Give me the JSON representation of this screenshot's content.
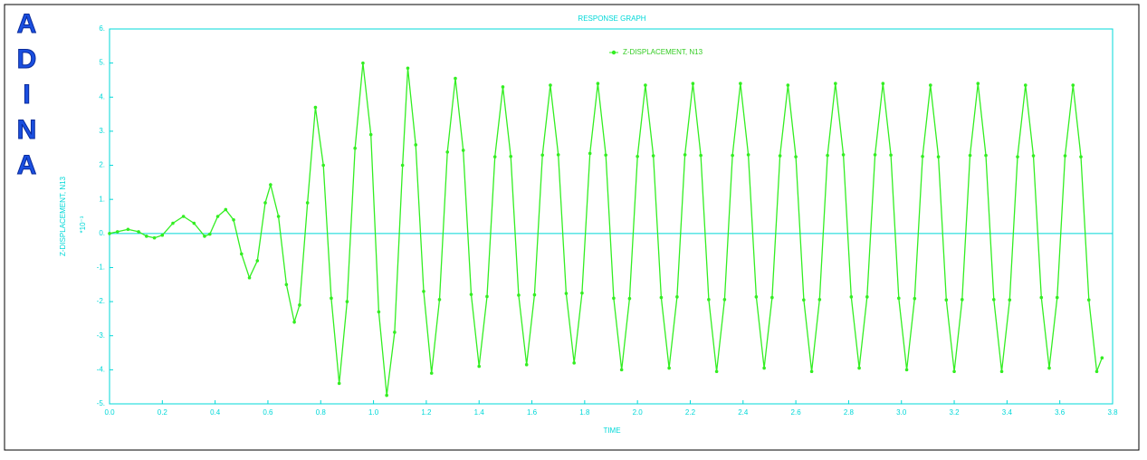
{
  "logo": "ADINA",
  "chart_data": {
    "type": "line",
    "title": "RESPONSE GRAPH",
    "xlabel": "TIME",
    "ylabel": "Z-DISPLACEMENT, N13",
    "y_multiplier": "*10⁻³",
    "x": [
      0.0,
      0.03,
      0.07,
      0.11,
      0.14,
      0.17,
      0.2,
      0.24,
      0.28,
      0.32,
      0.36,
      0.38,
      0.41,
      0.44,
      0.47,
      0.5,
      0.53,
      0.56,
      0.59,
      0.61,
      0.64,
      0.67,
      0.7,
      0.72,
      0.75,
      0.78,
      0.81,
      0.84,
      0.87,
      0.9,
      0.93,
      0.96,
      0.99,
      1.02,
      1.05,
      1.08,
      1.11,
      1.13,
      1.16,
      1.19,
      1.22,
      1.25,
      1.28,
      1.31,
      1.34,
      1.37,
      1.4,
      1.43,
      1.46,
      1.49,
      1.52,
      1.55,
      1.58,
      1.61,
      1.64,
      1.67,
      1.7,
      1.73,
      1.76,
      1.79,
      1.82,
      1.85,
      1.88,
      1.91,
      1.94,
      1.97,
      2.0,
      2.03,
      2.06,
      2.09,
      2.12,
      2.15,
      2.18,
      2.21,
      2.24,
      2.27,
      2.3,
      2.33,
      2.36,
      2.39,
      2.42,
      2.45,
      2.48,
      2.51,
      2.54,
      2.57,
      2.6,
      2.63,
      2.66,
      2.69,
      2.72,
      2.75,
      2.78,
      2.81,
      2.84,
      2.87,
      2.9,
      2.93,
      2.96,
      2.99,
      3.02,
      3.05,
      3.08,
      3.11,
      3.14,
      3.17,
      3.2,
      3.23,
      3.26,
      3.29,
      3.32,
      3.35,
      3.38,
      3.41,
      3.44,
      3.47,
      3.5,
      3.53,
      3.56,
      3.59,
      3.62,
      3.65,
      3.68,
      3.71,
      3.74,
      3.76
    ],
    "series": [
      {
        "name": "Z-DISPLACEMENT, N13",
        "color": "#33ee22",
        "values": [
          0,
          0.05,
          0.12,
          0.05,
          -0.08,
          -0.13,
          -0.05,
          0.3,
          0.5,
          0.3,
          -0.08,
          -0.02,
          0.5,
          0.7,
          0.4,
          -0.6,
          -1.3,
          -0.8,
          0.9,
          1.43,
          0.5,
          -1.5,
          -2.6,
          -2.1,
          0.9,
          3.7,
          2.0,
          -1.9,
          -4.4,
          -2.0,
          2.5,
          5.0,
          2.9,
          -2.3,
          -4.75,
          -2.9,
          2.0,
          4.85,
          2.6,
          -1.7,
          -4.1,
          -1.94,
          2.39,
          4.55,
          2.44,
          -1.79,
          -3.9,
          -1.85,
          2.25,
          4.3,
          2.26,
          -1.81,
          -3.85,
          -1.8,
          2.3,
          4.35,
          2.31,
          -1.76,
          -3.8,
          -1.75,
          2.35,
          4.4,
          2.3,
          -1.9,
          -4.0,
          -1.91,
          2.26,
          4.35,
          2.28,
          -1.88,
          -3.95,
          -1.86,
          2.31,
          4.4,
          2.29,
          -1.94,
          -4.05,
          -1.94,
          2.29,
          4.4,
          2.31,
          -1.86,
          -3.95,
          -1.88,
          2.28,
          4.35,
          2.25,
          -1.95,
          -4.05,
          -1.94,
          2.29,
          4.4,
          2.31,
          -1.86,
          -3.95,
          -1.86,
          2.31,
          4.4,
          2.3,
          -1.9,
          -4.0,
          -1.91,
          2.26,
          4.35,
          2.25,
          -1.95,
          -4.05,
          -1.94,
          2.29,
          4.4,
          2.29,
          -1.94,
          -4.05,
          -1.95,
          2.25,
          4.35,
          2.28,
          -1.88,
          -3.95,
          -1.88,
          2.28,
          4.35,
          2.25,
          -1.95,
          -4.05,
          -3.65
        ]
      }
    ],
    "xlim": [
      0,
      3.8
    ],
    "xticks": [
      {
        "value": 0,
        "label": "0.0"
      },
      0.2,
      0.4,
      0.6,
      0.8,
      {
        "value": 1,
        "label": "1.0"
      },
      1.2,
      1.4,
      1.6,
      1.8,
      {
        "value": 2,
        "label": "2.0"
      },
      2.2,
      2.4,
      2.6,
      2.8,
      {
        "value": 3,
        "label": "3.0"
      },
      3.2,
      3.4,
      3.6,
      3.8
    ],
    "ylim": [
      -5,
      6
    ],
    "yticks": [
      {
        "value": -5,
        "label": "-5."
      },
      {
        "value": -4,
        "label": "-4."
      },
      {
        "value": -3,
        "label": "-3."
      },
      {
        "value": -2,
        "label": "-2."
      },
      {
        "value": -1,
        "label": "-1."
      },
      {
        "value": 0,
        "label": "0."
      },
      {
        "value": 1,
        "label": "1."
      },
      {
        "value": 2,
        "label": "2."
      },
      {
        "value": 3,
        "label": "3."
      },
      {
        "value": 4,
        "label": "4."
      },
      {
        "value": 5,
        "label": "5."
      },
      {
        "value": 6,
        "label": "6."
      }
    ],
    "zero_line": true
  }
}
